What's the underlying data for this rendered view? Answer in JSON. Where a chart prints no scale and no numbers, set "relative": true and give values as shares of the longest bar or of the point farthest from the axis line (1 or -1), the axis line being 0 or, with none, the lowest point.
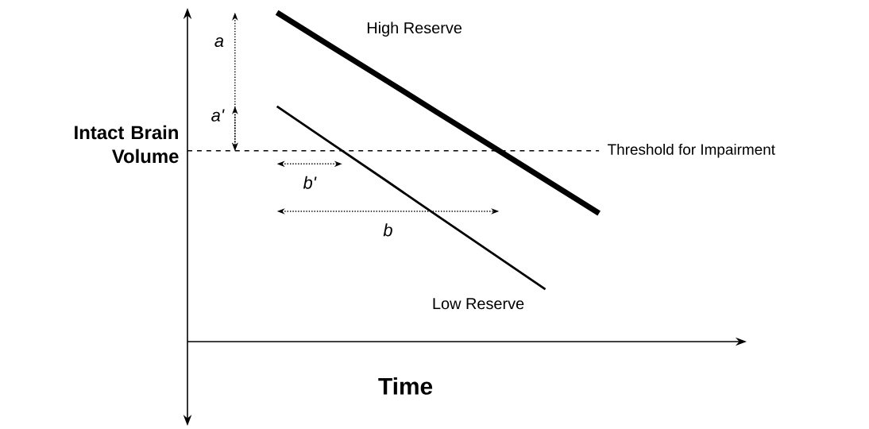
{
  "chart_data": {
    "type": "line",
    "relative": true,
    "xlabel": "Time",
    "ylabel": "Intact Brain Volume",
    "marker": "none",
    "categories": [
      null,
      null,
      null,
      null,
      null,
      null,
      null
    ],
    "series": [
      {
        "name": "High Reserve",
        "color": "#000000",
        "values": [
          1,
          0.898,
          0.797,
          0.695,
          0.594,
          0.492,
          0.39
        ]
      },
      {
        "name": "Low Reserve",
        "color": "#000000",
        "values": [
          0.715,
          0.604,
          0.493,
          0.381,
          0.27,
          0.159,
          null
        ]
      }
    ],
    "ref_lines": [
      {
        "axis": "y",
        "value": 0.58,
        "label": "Threshold for Impairment",
        "color": "#000000",
        "line_style": "dashed"
      }
    ],
    "annotations": [
      "a",
      "a'",
      "b'",
      "b"
    ]
  }
}
